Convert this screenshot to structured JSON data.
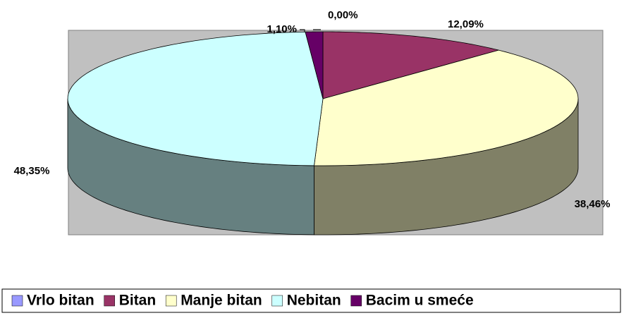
{
  "chart_data": {
    "type": "pie",
    "categories": [
      "Vrlo bitan",
      "Bitan",
      "Manje bitan",
      "Nebitan",
      "Bacim u smeće"
    ],
    "values": [
      0,
      12.09,
      38.46,
      48.35,
      1.1
    ],
    "value_labels": [
      "0,00%",
      "12,09%",
      "38,46%",
      "48,35%",
      "1,10%"
    ],
    "colors": [
      "#9999ff",
      "#993366",
      "#ffffcc",
      "#ccffff",
      "#660066"
    ],
    "legend": "bottom"
  }
}
